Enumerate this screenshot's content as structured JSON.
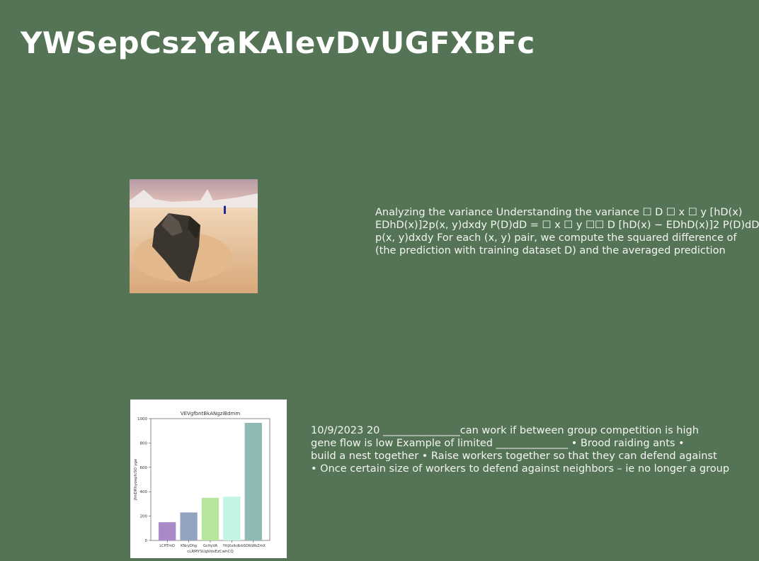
{
  "title": "YWSepCszYaKAIevDvUGFXBFc",
  "paragraph_1": [
    "Analyzing the variance Understanding the variance ☐ D ☐ x ☐ y [hD(x)",
    "EDhD(x)]2p(x, y)dxdy P(D)dD = ☐ x ☐ y ☐☐ D [hD(x) − EDhD(x)]2 P(D)dD",
    "p(x, y)dxdy For each (x, y) pair, we compute the squared difference of",
    "(the prediction with training dataset D) and the averaged prediction"
  ],
  "paragraph_2": [
    "10/9/2023 20 _______________can work if between group competition is high",
    "gene flow is low Example of limited ______________ • Brood raiding ants •",
    "build a nest together • Raise workers together so that they can defend against",
    "• Once certain size of workers to defend against neighbors – ie no longer a group"
  ],
  "chart_data": {
    "type": "bar",
    "title": "VEVgfbntBkANgziBdmm",
    "xlabel": "cLRMYSUgVdsEzCwhCQ",
    "ylabel": "jfmDRhyoepfcSO yge",
    "categories": [
      "LCffTmO",
      "KNcyDhg",
      "GcttyVA",
      "YttjXxIkdb",
      "bSOlkWbZmX"
    ],
    "values": [
      150,
      230,
      350,
      360,
      965
    ],
    "colors": [
      "#a98ac9",
      "#95a3c2",
      "#b8e59e",
      "#c2f6e3",
      "#8fbab4"
    ],
    "ylim": [
      0,
      1000
    ],
    "yticks": [
      0,
      200,
      400,
      600,
      800,
      1000
    ],
    "grid": false
  }
}
